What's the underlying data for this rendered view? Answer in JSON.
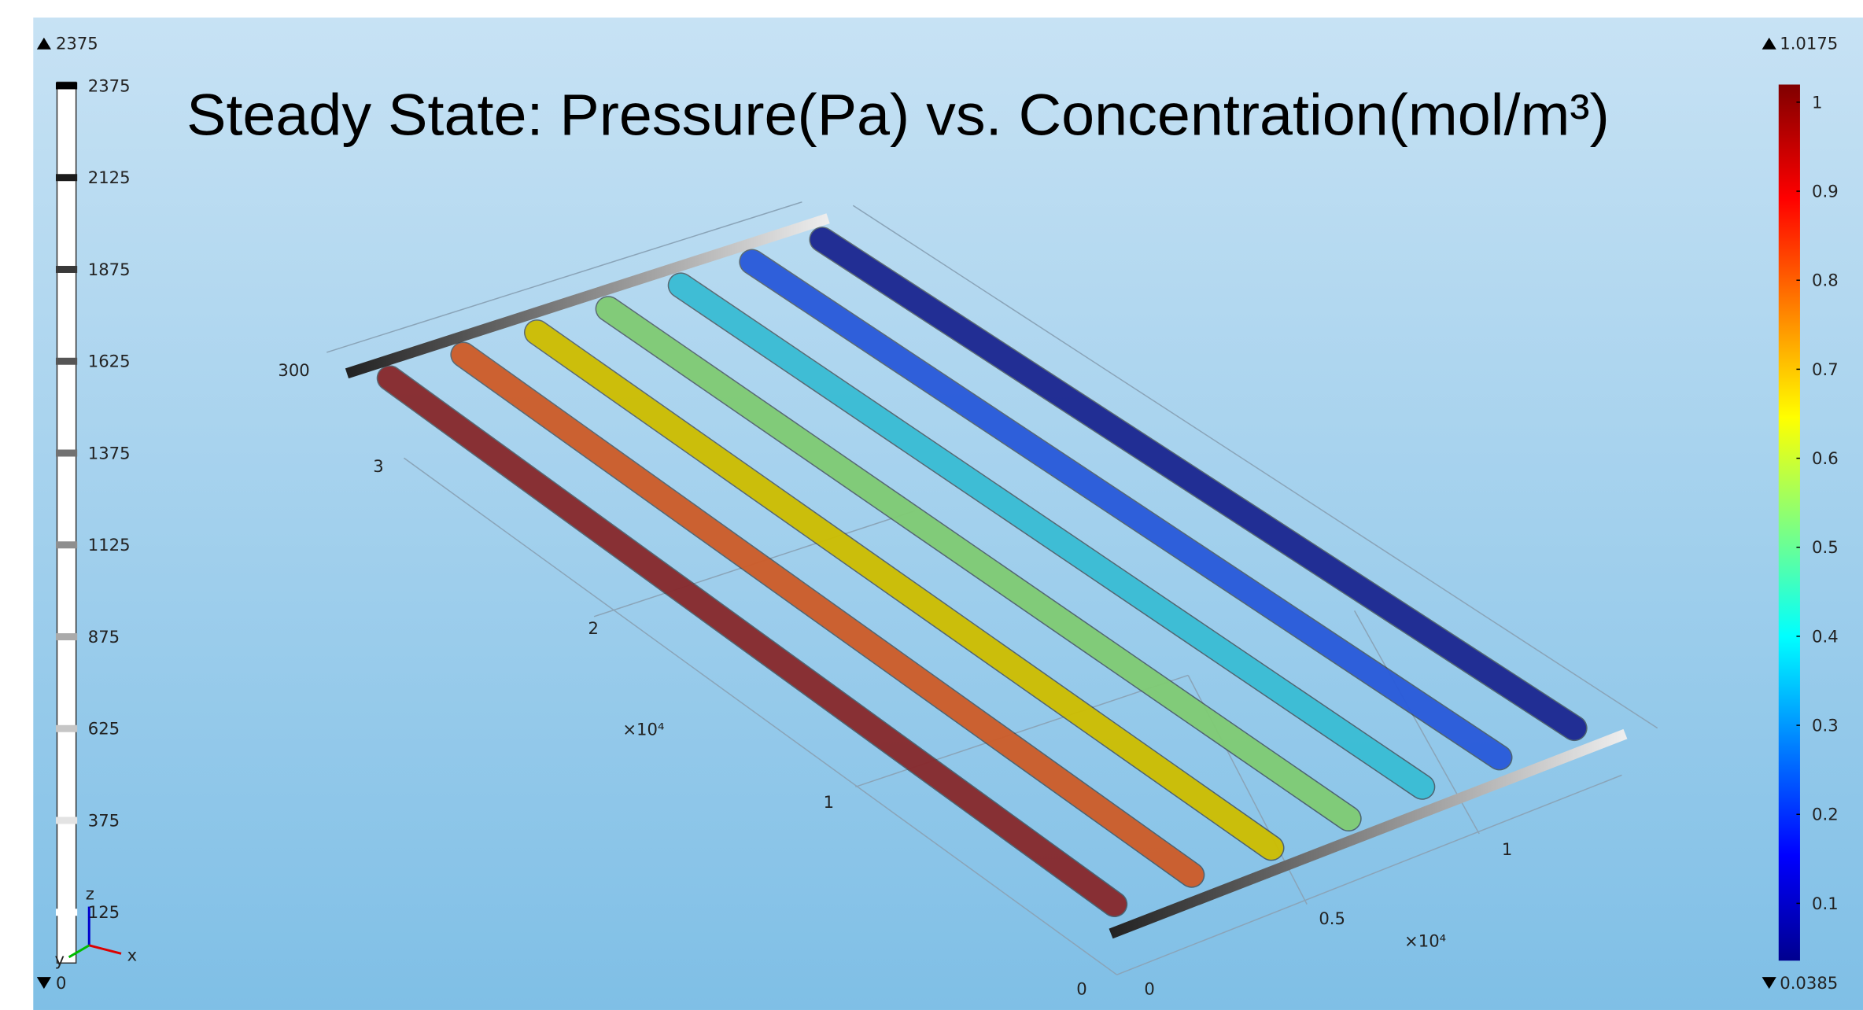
{
  "title": "Steady State: Pressure(Pa) vs. Concentration(mol/m³)",
  "pressure_legend": {
    "max": "2375",
    "min": "0",
    "ticks": [
      "2375",
      "2125",
      "1875",
      "1625",
      "1375",
      "1125",
      "875",
      "625",
      "375",
      "125"
    ]
  },
  "concentration_legend": {
    "max": "1.0175",
    "min": "0.0385",
    "ticks": [
      "1",
      "0.9",
      "0.8",
      "0.7",
      "0.6",
      "0.5",
      "0.4",
      "0.3",
      "0.2",
      "0.1"
    ]
  },
  "axis_triad": {
    "z": "z",
    "x": "x",
    "y": "y"
  },
  "plot_labels": [
    "300",
    "3",
    "2",
    "×10⁴",
    "1",
    "0",
    "0",
    "0.5",
    "×10⁴",
    "1"
  ]
}
